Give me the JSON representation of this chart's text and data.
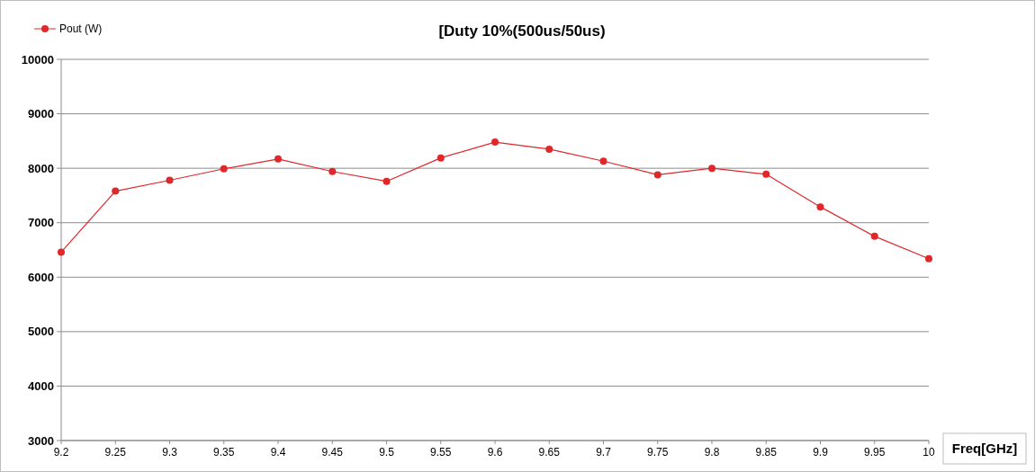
{
  "chart_data": {
    "type": "line",
    "title": "[Duty 10%(500us/50us)",
    "xlabel": "Freq[GHz]",
    "x": [
      9.2,
      9.25,
      9.3,
      9.35,
      9.4,
      9.45,
      9.5,
      9.55,
      9.6,
      9.65,
      9.7,
      9.75,
      9.8,
      9.85,
      9.9,
      9.95,
      10
    ],
    "series": [
      {
        "name": "Pout (W)",
        "color": "#e0272a",
        "values": [
          6460,
          7580,
          7780,
          7990,
          8170,
          7940,
          7760,
          8190,
          8480,
          8350,
          8130,
          7880,
          8000,
          7890,
          7290,
          6750,
          6340
        ]
      }
    ],
    "xlim": [
      9.2,
      10
    ],
    "xticks": [
      9.2,
      9.25,
      9.3,
      9.35,
      9.4,
      9.45,
      9.5,
      9.55,
      9.6,
      9.65,
      9.7,
      9.75,
      9.8,
      9.85,
      9.9,
      9.95,
      10
    ],
    "ylim": [
      3000,
      10000
    ],
    "yticks": [
      3000,
      4000,
      5000,
      6000,
      7000,
      8000,
      9000,
      10000
    ],
    "grid": "y",
    "legend": "top left",
    "marker": "circle",
    "line_style": "solid"
  }
}
